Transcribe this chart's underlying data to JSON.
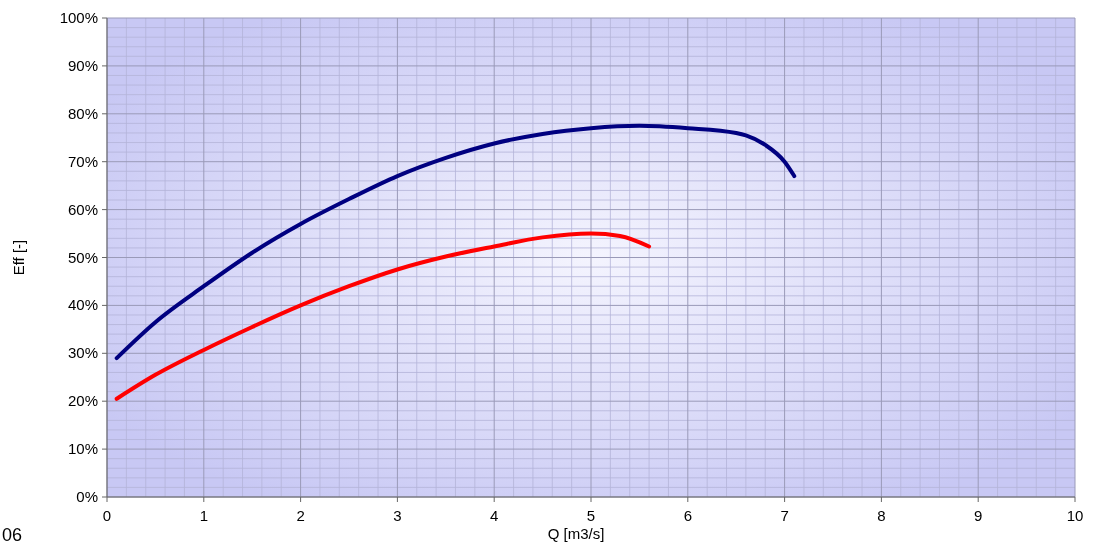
{
  "chart_data": {
    "type": "line",
    "xlabel": "Q [m3/s]",
    "ylabel": "Eff [-]",
    "annotations": [
      "06"
    ],
    "xlim": [
      0,
      10
    ],
    "xticks": [
      0,
      1,
      2,
      3,
      4,
      5,
      6,
      7,
      8,
      9,
      10
    ],
    "ylim": [
      0,
      100
    ],
    "yticks": [
      {
        "value": 0,
        "label": "0%"
      },
      {
        "value": 10,
        "label": "10%"
      },
      {
        "value": 20,
        "label": "20%"
      },
      {
        "value": 30,
        "label": "30%"
      },
      {
        "value": 40,
        "label": "40%"
      },
      {
        "value": 50,
        "label": "50%"
      },
      {
        "value": 60,
        "label": "60%"
      },
      {
        "value": 70,
        "label": "70%"
      },
      {
        "value": 80,
        "label": "80%"
      },
      {
        "value": 90,
        "label": "90%"
      },
      {
        "value": 100,
        "label": "100%"
      }
    ],
    "grid": true,
    "marker": "none",
    "line_style": "solid",
    "series": [
      {
        "color": "#000080",
        "x": [
          0.1,
          0.5,
          1,
          1.5,
          2,
          2.5,
          3,
          3.5,
          4,
          4.5,
          5,
          5.5,
          6,
          6.5,
          6.6,
          6.8,
          7,
          7.1
        ],
        "values": [
          29,
          36.5,
          44,
          51,
          57,
          62.2,
          67,
          70.8,
          73.8,
          75.8,
          77,
          77.5,
          77,
          76,
          75.5,
          73.5,
          70,
          67
        ]
      },
      {
        "color": "#ff0000",
        "x": [
          0.1,
          0.5,
          1,
          1.5,
          2,
          2.5,
          3,
          3.5,
          4,
          4.5,
          5,
          5.3,
          5.6
        ],
        "values": [
          20.5,
          25.5,
          30.7,
          35.5,
          40,
          44,
          47.5,
          50.2,
          52.3,
          54.2,
          55,
          54.5,
          52.3
        ]
      }
    ]
  }
}
